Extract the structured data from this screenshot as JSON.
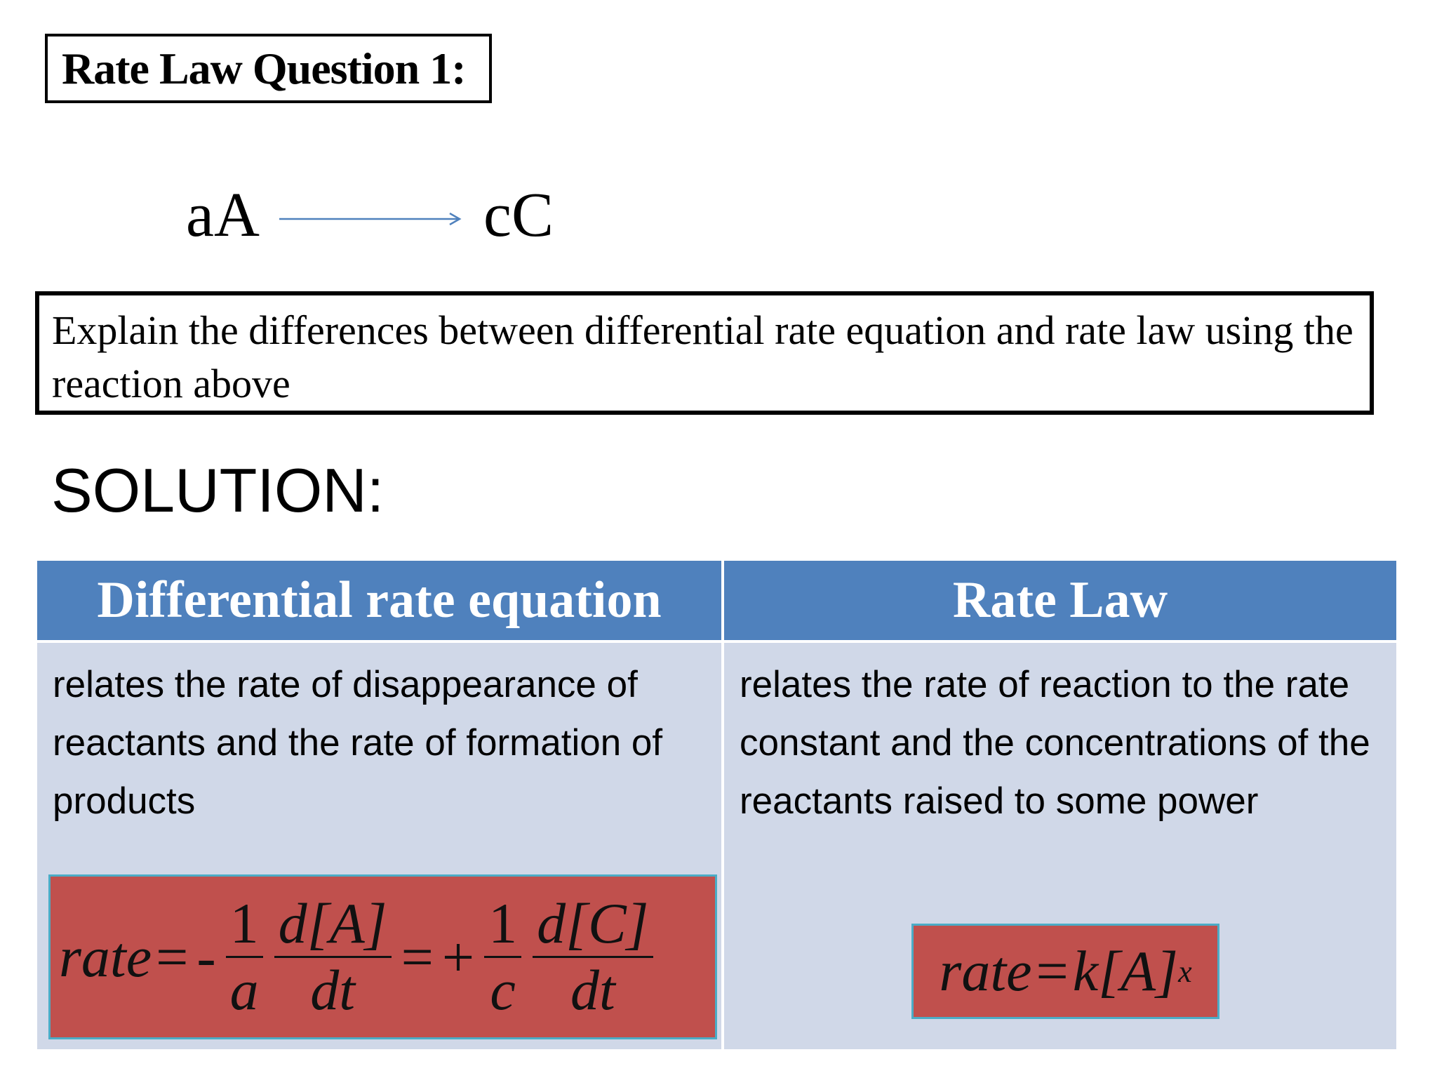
{
  "title": "Rate Law Question 1:",
  "reaction": {
    "reactant": "aA",
    "product": "cC"
  },
  "question": "Explain the differences between differential rate equation and rate law using the reaction above",
  "solution_label": "SOLUTION:",
  "table": {
    "headers": [
      "Differential rate equation",
      "Rate Law"
    ],
    "rows": [
      [
        "relates the rate of disappearance of reactants and the rate of formation of products",
        "relates the rate of reaction to the rate constant and the concentrations of the reactants raised to some power"
      ]
    ]
  },
  "formulas": [
    {
      "lhs": "rate",
      "equals": [
        "=",
        "="
      ],
      "signs": [
        "-",
        "+"
      ],
      "fractions": [
        [
          "1",
          "a"
        ],
        [
          "d[A]",
          "dt"
        ],
        [
          "1",
          "c"
        ],
        [
          "d[C]",
          "dt"
        ]
      ]
    },
    {
      "lhs": "rate",
      "equals": "=",
      "rhs": "k[A]",
      "exponent": "x"
    }
  ]
}
